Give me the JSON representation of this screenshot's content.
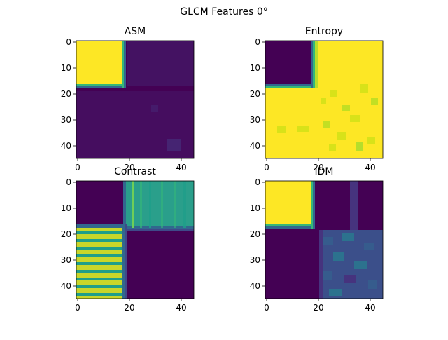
{
  "suptitle": "GLCM Features 0°",
  "colors": {
    "dark": "#440154",
    "mid_dark": "#46337e",
    "mid": "#365c8d",
    "teal": "#277f8e",
    "green": "#1fa187",
    "light_green": "#4ac16d",
    "lime": "#a0da39",
    "yellow": "#fde725"
  },
  "chart_data": [
    {
      "type": "heatmap",
      "title": "ASM",
      "xlim": [
        0,
        45
      ],
      "ylim": [
        45,
        0
      ],
      "x_ticks": [
        "0",
        "20",
        "40"
      ],
      "y_ticks": [
        "0",
        "10",
        "20",
        "30",
        "40"
      ],
      "regions": [
        {
          "x": [
            0,
            18
          ],
          "y": [
            0,
            18
          ],
          "value": 1.0
        },
        {
          "x": [
            18,
            45
          ],
          "y": [
            0,
            18
          ],
          "value": 0.05
        },
        {
          "x": [
            0,
            18
          ],
          "y": [
            18,
            45
          ],
          "value": 0.05
        },
        {
          "x": [
            18,
            45
          ],
          "y": [
            18,
            45
          ],
          "value": 0.06
        }
      ]
    },
    {
      "type": "heatmap",
      "title": "Entropy",
      "xlim": [
        0,
        45
      ],
      "ylim": [
        45,
        0
      ],
      "x_ticks": [
        "0",
        "20",
        "40"
      ],
      "y_ticks": [
        "0",
        "10",
        "20",
        "30",
        "40"
      ],
      "regions": [
        {
          "x": [
            0,
            18
          ],
          "y": [
            0,
            18
          ],
          "value": 0.0
        },
        {
          "x": [
            18,
            45
          ],
          "y": [
            0,
            18
          ],
          "value": 1.0
        },
        {
          "x": [
            0,
            18
          ],
          "y": [
            18,
            45
          ],
          "value": 1.0
        },
        {
          "x": [
            18,
            45
          ],
          "y": [
            18,
            45
          ],
          "value": 0.95
        }
      ]
    },
    {
      "type": "heatmap",
      "title": "Contrast",
      "xlim": [
        0,
        45
      ],
      "ylim": [
        45,
        0
      ],
      "x_ticks": [
        "0",
        "20",
        "40"
      ],
      "y_ticks": [
        "0",
        "10",
        "20",
        "30",
        "40"
      ],
      "regions": [
        {
          "x": [
            0,
            18
          ],
          "y": [
            0,
            18
          ],
          "value": 0.0
        },
        {
          "x": [
            18,
            45
          ],
          "y": [
            0,
            18
          ],
          "value": 0.55
        },
        {
          "x": [
            0,
            18
          ],
          "y": [
            18,
            45
          ],
          "value": 0.75
        },
        {
          "x": [
            18,
            45
          ],
          "y": [
            18,
            45
          ],
          "value": 0.0
        }
      ]
    },
    {
      "type": "heatmap",
      "title": "IDM",
      "xlim": [
        0,
        45
      ],
      "ylim": [
        45,
        0
      ],
      "x_ticks": [
        "0",
        "20",
        "40"
      ],
      "y_ticks": [
        "0",
        "10",
        "20",
        "30",
        "40"
      ],
      "regions": [
        {
          "x": [
            0,
            18
          ],
          "y": [
            0,
            18
          ],
          "value": 1.0
        },
        {
          "x": [
            18,
            45
          ],
          "y": [
            0,
            18
          ],
          "value": 0.0
        },
        {
          "x": [
            0,
            18
          ],
          "y": [
            18,
            45
          ],
          "value": 0.0
        },
        {
          "x": [
            18,
            45
          ],
          "y": [
            18,
            45
          ],
          "value": 0.2
        }
      ]
    }
  ]
}
